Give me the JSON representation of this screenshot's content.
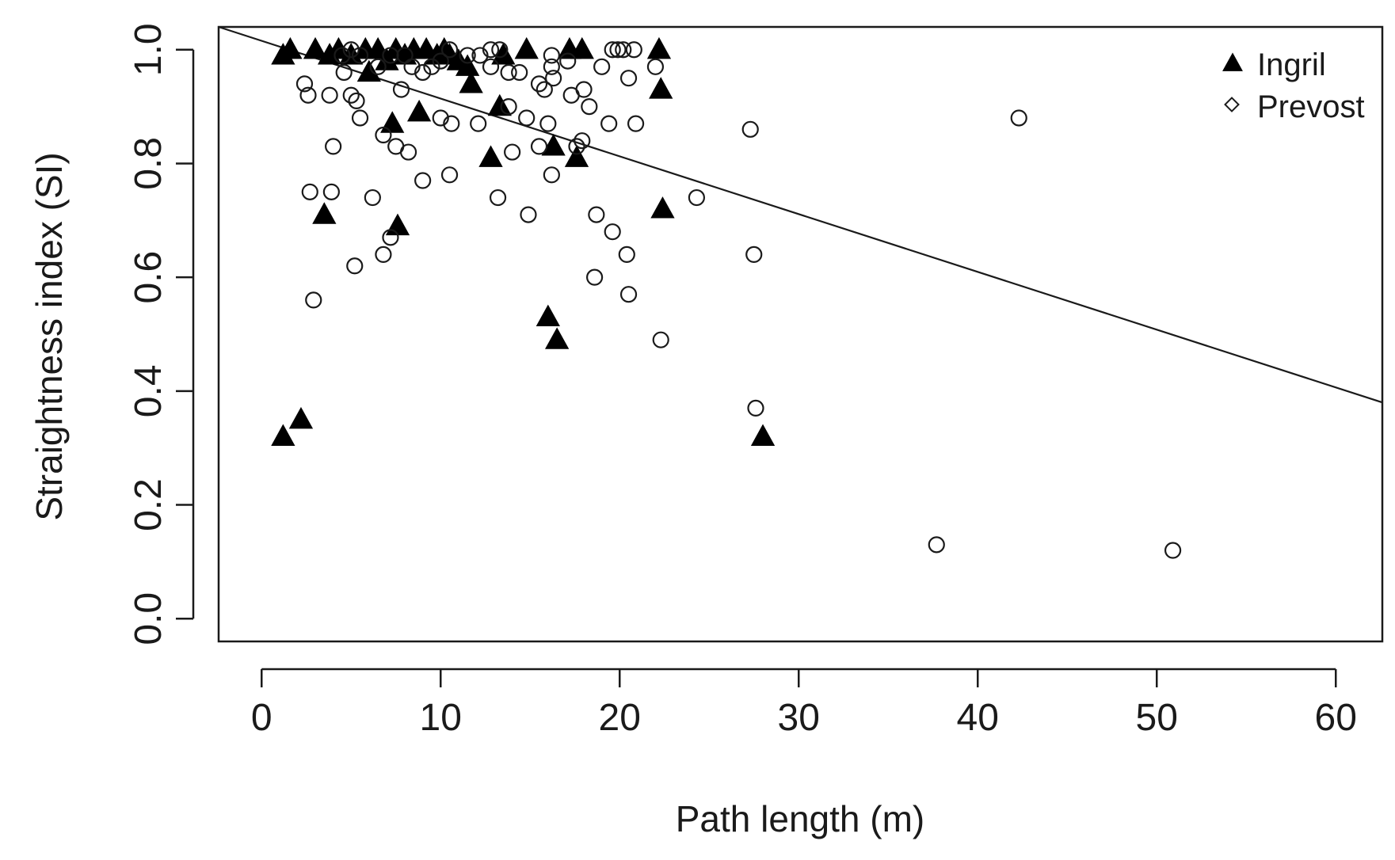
{
  "chart_data": {
    "type": "scatter",
    "title": "",
    "xlabel": "Path length (m)",
    "ylabel": "Straightness index (SI)",
    "xlim": [
      -2.4,
      62.6
    ],
    "ylim": [
      -0.04,
      1.04
    ],
    "xticks": [
      "0",
      "10",
      "20",
      "30",
      "40",
      "50",
      "60"
    ],
    "yticks": [
      "0.0",
      "0.2",
      "0.4",
      "0.6",
      "0.8",
      "1.0"
    ],
    "grid": false,
    "legend_position": "top-right",
    "series": [
      {
        "name": "Ingril",
        "marker": "filled-triangle",
        "points": [
          [
            1.2,
            0.99
          ],
          [
            1.6,
            1.0
          ],
          [
            3.0,
            1.0
          ],
          [
            3.8,
            0.99
          ],
          [
            4.3,
            1.0
          ],
          [
            5.0,
            0.99
          ],
          [
            5.8,
            1.0
          ],
          [
            6.0,
            0.96
          ],
          [
            6.5,
            1.0
          ],
          [
            7.0,
            0.98
          ],
          [
            7.5,
            1.0
          ],
          [
            8.0,
            0.99
          ],
          [
            8.5,
            1.0
          ],
          [
            9.2,
            1.0
          ],
          [
            9.8,
            0.99
          ],
          [
            10.2,
            1.0
          ],
          [
            10.5,
            0.99
          ],
          [
            11.0,
            0.98
          ],
          [
            11.5,
            0.97
          ],
          [
            11.7,
            0.94
          ],
          [
            13.3,
            0.9
          ],
          [
            13.5,
            0.99
          ],
          [
            14.8,
            1.0
          ],
          [
            16.3,
            0.83
          ],
          [
            17.2,
            1.0
          ],
          [
            17.6,
            0.81
          ],
          [
            17.9,
            1.0
          ],
          [
            22.2,
            1.0
          ],
          [
            22.3,
            0.93
          ],
          [
            7.3,
            0.87
          ],
          [
            8.8,
            0.89
          ],
          [
            12.8,
            0.81
          ],
          [
            22.4,
            0.72
          ],
          [
            3.5,
            0.71
          ],
          [
            7.6,
            0.69
          ],
          [
            16.0,
            0.53
          ],
          [
            16.5,
            0.49
          ],
          [
            2.2,
            0.35
          ],
          [
            1.2,
            0.32
          ],
          [
            28.0,
            0.32
          ]
        ]
      },
      {
        "name": "Prevost",
        "marker": "open-circle",
        "points": [
          [
            4.5,
            0.99
          ],
          [
            5.0,
            1.0
          ],
          [
            5.5,
            0.99
          ],
          [
            6.5,
            0.97
          ],
          [
            7.2,
            0.99
          ],
          [
            8.0,
            0.99
          ],
          [
            8.4,
            0.97
          ],
          [
            9.0,
            0.96
          ],
          [
            9.5,
            0.97
          ],
          [
            10.0,
            0.98
          ],
          [
            10.5,
            1.0
          ],
          [
            11.5,
            0.99
          ],
          [
            12.2,
            0.99
          ],
          [
            12.8,
            1.0
          ],
          [
            13.3,
            1.0
          ],
          [
            12.8,
            0.97
          ],
          [
            13.8,
            0.96
          ],
          [
            14.4,
            0.96
          ],
          [
            15.5,
            0.94
          ],
          [
            15.8,
            0.93
          ],
          [
            16.2,
            0.99
          ],
          [
            16.2,
            0.97
          ],
          [
            16.3,
            0.95
          ],
          [
            17.1,
            0.98
          ],
          [
            17.3,
            0.92
          ],
          [
            18.0,
            0.93
          ],
          [
            18.3,
            0.9
          ],
          [
            19.0,
            0.97
          ],
          [
            19.6,
            1.0
          ],
          [
            19.9,
            1.0
          ],
          [
            20.2,
            1.0
          ],
          [
            20.8,
            1.0
          ],
          [
            20.5,
            0.95
          ],
          [
            22.0,
            0.97
          ],
          [
            2.4,
            0.94
          ],
          [
            2.6,
            0.92
          ],
          [
            3.8,
            0.92
          ],
          [
            4.6,
            0.96
          ],
          [
            5.0,
            0.92
          ],
          [
            5.3,
            0.91
          ],
          [
            5.5,
            0.88
          ],
          [
            7.8,
            0.93
          ],
          [
            10.0,
            0.88
          ],
          [
            10.6,
            0.87
          ],
          [
            12.1,
            0.87
          ],
          [
            13.8,
            0.9
          ],
          [
            14.8,
            0.88
          ],
          [
            16.0,
            0.87
          ],
          [
            19.4,
            0.87
          ],
          [
            20.9,
            0.87
          ],
          [
            17.9,
            0.84
          ],
          [
            17.6,
            0.83
          ],
          [
            4.0,
            0.83
          ],
          [
            6.8,
            0.85
          ],
          [
            7.5,
            0.83
          ],
          [
            8.2,
            0.82
          ],
          [
            14.0,
            0.82
          ],
          [
            15.5,
            0.83
          ],
          [
            16.2,
            0.78
          ],
          [
            10.5,
            0.78
          ],
          [
            9.0,
            0.77
          ],
          [
            2.7,
            0.75
          ],
          [
            3.9,
            0.75
          ],
          [
            6.2,
            0.74
          ],
          [
            13.2,
            0.74
          ],
          [
            14.9,
            0.71
          ],
          [
            24.3,
            0.74
          ],
          [
            27.3,
            0.86
          ],
          [
            18.7,
            0.71
          ],
          [
            19.6,
            0.68
          ],
          [
            20.4,
            0.64
          ],
          [
            7.2,
            0.67
          ],
          [
            6.8,
            0.64
          ],
          [
            5.2,
            0.62
          ],
          [
            18.6,
            0.6
          ],
          [
            20.5,
            0.57
          ],
          [
            2.9,
            0.56
          ],
          [
            27.5,
            0.64
          ],
          [
            22.3,
            0.49
          ],
          [
            27.6,
            0.37
          ],
          [
            42.3,
            0.88
          ],
          [
            37.7,
            0.13
          ],
          [
            50.9,
            0.12
          ]
        ]
      }
    ],
    "trend_line": {
      "type": "linear",
      "from": [
        -2.4,
        1.04
      ],
      "to": [
        62.6,
        0.38
      ]
    }
  }
}
